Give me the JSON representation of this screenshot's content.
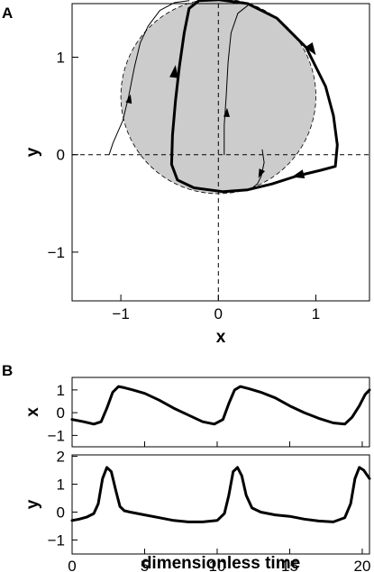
{
  "chart_data": [
    {
      "panel": "A",
      "type": "line",
      "xlabel": "x",
      "ylabel": "y",
      "xlim": [
        -1.5,
        1.55
      ],
      "ylim": [
        -1.5,
        1.55
      ],
      "xticks": [
        {
          "v": -1,
          "label": "−1"
        },
        {
          "v": 0,
          "label": "0"
        },
        {
          "v": 1,
          "label": "1"
        }
      ],
      "yticks": [
        {
          "v": -1,
          "label": "−1"
        },
        {
          "v": 0,
          "label": "0"
        },
        {
          "v": 1,
          "label": "1"
        }
      ],
      "disk": {
        "center": [
          0.0,
          0.6
        ],
        "radius": 1.0
      },
      "limit_cycle": [
        [
          0.05,
          -0.38
        ],
        [
          -0.25,
          -0.34
        ],
        [
          -0.42,
          -0.26
        ],
        [
          -0.48,
          -0.1
        ],
        [
          -0.47,
          0.2
        ],
        [
          -0.44,
          0.55
        ],
        [
          -0.4,
          0.9
        ],
        [
          -0.35,
          1.25
        ],
        [
          -0.3,
          1.5
        ],
        [
          -0.2,
          1.58
        ],
        [
          0.0,
          1.59
        ],
        [
          0.3,
          1.55
        ],
        [
          0.6,
          1.4
        ],
        [
          0.9,
          1.1
        ],
        [
          1.1,
          0.7
        ],
        [
          1.18,
          0.4
        ],
        [
          1.22,
          0.1
        ],
        [
          1.2,
          -0.12
        ],
        [
          1.05,
          -0.16
        ],
        [
          0.8,
          -0.22
        ],
        [
          0.55,
          -0.3
        ],
        [
          0.3,
          -0.36
        ],
        [
          0.05,
          -0.38
        ]
      ],
      "transients": [
        [
          [
            -1.12,
            0.0
          ],
          [
            -1.08,
            0.12
          ],
          [
            -0.98,
            0.35
          ],
          [
            -0.92,
            0.6
          ],
          [
            -0.86,
            0.9
          ],
          [
            -0.8,
            1.15
          ],
          [
            -0.72,
            1.32
          ],
          [
            -0.6,
            1.48
          ],
          [
            -0.45,
            1.56
          ],
          [
            -0.3,
            1.58
          ]
        ],
        [
          [
            0.06,
            0.0
          ],
          [
            0.06,
            0.3
          ],
          [
            0.08,
            0.6
          ],
          [
            0.1,
            0.95
          ],
          [
            0.13,
            1.25
          ],
          [
            0.2,
            1.45
          ],
          [
            0.3,
            1.53
          ]
        ],
        [
          [
            0.45,
            0.05
          ],
          [
            0.47,
            -0.08
          ],
          [
            0.44,
            -0.22
          ],
          [
            0.4,
            -0.3
          ],
          [
            0.35,
            -0.34
          ]
        ]
      ],
      "arrows": [
        {
          "at": [
            -0.44,
            0.92
          ],
          "dir": [
            0.12,
            1.0
          ],
          "size": "large"
        },
        {
          "at": [
            1.0,
            1.02
          ],
          "dir": [
            0.55,
            -0.8
          ],
          "size": "large"
        },
        {
          "at": [
            0.75,
            -0.23
          ],
          "dir": [
            -1.0,
            -0.25
          ],
          "size": "large"
        },
        {
          "at": [
            -0.9,
            0.62
          ],
          "dir": [
            0.22,
            1.0
          ],
          "size": "small"
        },
        {
          "at": [
            0.09,
            0.48
          ],
          "dir": [
            0.05,
            1.0
          ],
          "size": "small"
        },
        {
          "at": [
            0.41,
            -0.24
          ],
          "dir": [
            -0.45,
            -1.0
          ],
          "size": "small"
        }
      ]
    },
    {
      "panel": "B-top",
      "type": "line",
      "ylabel": "x",
      "xlim": [
        0,
        20.5
      ],
      "ylim": [
        -1.5,
        1.55
      ],
      "yticks": [
        {
          "v": -1,
          "label": "−1"
        },
        {
          "v": 0,
          "label": "0"
        },
        {
          "v": 1,
          "label": "1"
        }
      ],
      "series": [
        {
          "x": [
            0,
            0.8,
            1.5,
            2.0,
            2.4,
            2.8,
            3.2,
            3.6,
            4.2,
            5.0,
            6.0,
            7.0,
            8.0,
            9.0,
            9.8,
            10.4,
            10.8,
            11.2,
            11.6,
            12.2,
            13.0,
            14.0,
            15.0,
            16.0,
            17.0,
            18.0,
            18.8,
            19.3,
            19.8,
            20.2,
            20.5
          ],
          "y": [
            -0.3,
            -0.4,
            -0.5,
            -0.4,
            0.2,
            0.9,
            1.15,
            1.1,
            1.0,
            0.85,
            0.55,
            0.2,
            -0.1,
            -0.4,
            -0.5,
            -0.3,
            0.4,
            1.0,
            1.15,
            1.05,
            0.9,
            0.65,
            0.3,
            0.0,
            -0.25,
            -0.45,
            -0.5,
            -0.2,
            0.3,
            0.8,
            1.0
          ]
        }
      ]
    },
    {
      "panel": "B-bottom",
      "type": "line",
      "ylabel": "y",
      "xlabel": "dimensionless time",
      "xlim": [
        0,
        20.5
      ],
      "ylim": [
        -1.5,
        2.05
      ],
      "xticks": [
        {
          "v": 0,
          "label": "0"
        },
        {
          "v": 5,
          "label": "5"
        },
        {
          "v": 10,
          "label": "10"
        },
        {
          "v": 15,
          "label": "15"
        },
        {
          "v": 20,
          "label": "20"
        }
      ],
      "yticks": [
        {
          "v": -1,
          "label": "−1"
        },
        {
          "v": 0,
          "label": "0"
        },
        {
          "v": 1,
          "label": "1"
        },
        {
          "v": 2,
          "label": "2"
        }
      ],
      "series": [
        {
          "x": [
            0,
            0.5,
            1.0,
            1.5,
            1.8,
            2.1,
            2.4,
            2.7,
            3.0,
            3.3,
            3.6,
            4.0,
            5.0,
            6.0,
            7.0,
            8.0,
            9.0,
            10.0,
            10.5,
            10.8,
            11.1,
            11.4,
            11.7,
            12.0,
            12.4,
            13.0,
            14.0,
            15.0,
            16.0,
            17.0,
            18.0,
            18.8,
            19.2,
            19.5,
            19.8,
            20.1,
            20.5
          ],
          "y": [
            -0.3,
            -0.25,
            -0.18,
            -0.05,
            0.3,
            1.2,
            1.6,
            1.45,
            0.8,
            0.2,
            0.05,
            0.0,
            -0.1,
            -0.2,
            -0.3,
            -0.35,
            -0.35,
            -0.3,
            -0.05,
            0.6,
            1.45,
            1.6,
            1.3,
            0.6,
            0.15,
            0.0,
            -0.1,
            -0.15,
            -0.25,
            -0.32,
            -0.35,
            -0.2,
            0.3,
            1.2,
            1.6,
            1.5,
            1.2
          ]
        }
      ]
    }
  ]
}
